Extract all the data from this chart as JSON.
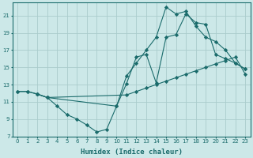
{
  "xlabel": "Humidex (Indice chaleur)",
  "background_color": "#cce8e8",
  "grid_color": "#aacccc",
  "line_color": "#1a6b6b",
  "xlim": [
    -0.5,
    23.5
  ],
  "ylim": [
    7,
    22.5
  ],
  "xticks": [
    0,
    1,
    2,
    3,
    4,
    5,
    6,
    7,
    8,
    9,
    10,
    11,
    12,
    13,
    14,
    15,
    16,
    17,
    18,
    19,
    20,
    21,
    22,
    23
  ],
  "yticks": [
    7,
    9,
    11,
    13,
    15,
    17,
    19,
    21
  ],
  "line1_x": [
    0,
    1,
    2,
    3,
    4,
    5,
    6,
    7,
    8,
    9,
    10,
    11,
    12,
    13,
    14,
    15,
    16,
    17,
    18,
    19,
    20,
    21,
    22,
    23
  ],
  "line1_y": [
    12.2,
    12.2,
    11.9,
    11.5,
    10.5,
    9.5,
    9.0,
    8.3,
    7.5,
    7.8,
    10.5,
    13.1,
    16.2,
    16.5,
    13.2,
    18.5,
    18.8,
    21.2,
    20.2,
    20.0,
    16.5,
    16.0,
    15.5,
    14.8
  ],
  "line2_x": [
    0,
    1,
    2,
    3,
    11,
    12,
    13,
    14,
    15,
    16,
    17,
    18,
    19,
    20,
    21,
    22,
    23
  ],
  "line2_y": [
    12.2,
    12.2,
    11.9,
    11.5,
    11.8,
    12.2,
    12.6,
    13.0,
    13.4,
    13.8,
    14.2,
    14.6,
    15.0,
    15.4,
    15.8,
    16.2,
    14.2
  ],
  "line3_x": [
    2,
    3,
    10,
    11,
    12,
    13,
    14,
    15,
    16,
    17,
    18,
    19,
    20,
    21,
    22,
    23
  ],
  "line3_y": [
    11.9,
    11.5,
    10.5,
    14.0,
    15.5,
    17.0,
    18.5,
    22.0,
    21.2,
    21.5,
    19.8,
    18.5,
    18.0,
    17.0,
    15.5,
    14.8
  ]
}
